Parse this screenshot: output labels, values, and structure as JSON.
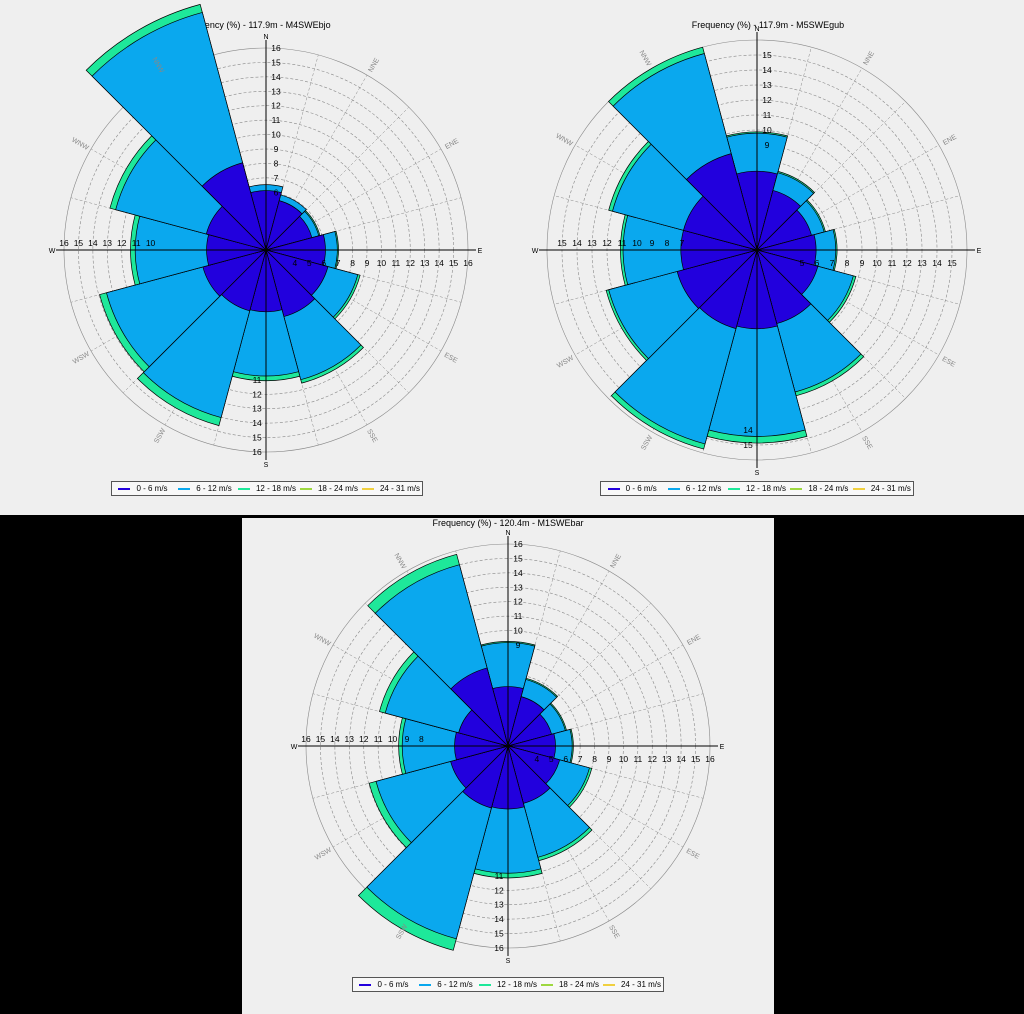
{
  "colors": {
    "bin0": "#2200dd",
    "bin1": "#0aa8ee",
    "bin2": "#1ee89a",
    "bin3": "#9ed840",
    "bin4": "#f0d040",
    "outline": "#000000",
    "grid": "#888888"
  },
  "legend": [
    "0 - 6 m/s",
    "6 - 12 m/s",
    "12 - 18 m/s",
    "18 - 24 m/s",
    "24 - 31 m/s"
  ],
  "chart_data": [
    {
      "type": "wind-rose",
      "title": "Frequency (%) - 117.9m - M4SWEbjo",
      "directions": [
        "N",
        "NNE",
        "ENE",
        "E",
        "ESE",
        "SSE",
        "S",
        "SSW",
        "WSW",
        "W",
        "WNW",
        "NNW"
      ],
      "compass_labels": [
        {
          "text": "N",
          "deg": 0
        },
        {
          "text": "NNE",
          "deg": 30
        },
        {
          "text": "ENE",
          "deg": 60
        },
        {
          "text": "E",
          "deg": 90
        },
        {
          "text": "ESE",
          "deg": 120
        },
        {
          "text": "SSE",
          "deg": 150
        },
        {
          "text": "S",
          "deg": 180
        },
        {
          "text": "SSW",
          "deg": 210
        },
        {
          "text": "WSW",
          "deg": 240
        },
        {
          "text": "W",
          "deg": 270
        },
        {
          "text": "WNW",
          "deg": 300
        },
        {
          "text": "NNW",
          "deg": 330
        }
      ],
      "r_inner": 3,
      "r_max": 17,
      "axis_labels": {
        "north": [
          6,
          7,
          8,
          9,
          10,
          11,
          12,
          13,
          14,
          15,
          16
        ],
        "east": [
          4,
          5,
          6,
          7,
          8,
          9,
          10,
          11,
          12,
          13,
          14,
          15,
          16
        ],
        "south": [
          11,
          12,
          13,
          14,
          15,
          16
        ],
        "west": [
          10,
          11,
          12,
          13,
          14,
          15,
          16
        ]
      },
      "series": [
        {
          "name": "0 - 6 m/s",
          "values": [
            5.0,
            4.3,
            4.0,
            5.0,
            5.4,
            5.8,
            5.2,
            5.3,
            5.5,
            5.0,
            5.2,
            7.6
          ]
        },
        {
          "name": "6 - 12 m/s",
          "values": [
            0.5,
            0.5,
            0.6,
            1.0,
            2.6,
            5.5,
            5.4,
            9.3,
            8.4,
            6.0,
            7.9,
            13.1
          ]
        },
        {
          "name": "12 - 18 m/s",
          "values": [
            0.0,
            0.0,
            0.1,
            0.1,
            0.2,
            0.3,
            0.4,
            0.7,
            0.6,
            0.4,
            0.5,
            0.7
          ]
        },
        {
          "name": "18 - 24 m/s",
          "values": [
            0,
            0,
            0,
            0,
            0,
            0,
            0,
            0,
            0,
            0,
            0,
            0
          ]
        },
        {
          "name": "24 - 31 m/s",
          "values": [
            0,
            0,
            0,
            0,
            0,
            0,
            0,
            0,
            0,
            0,
            0,
            0
          ]
        }
      ]
    },
    {
      "type": "wind-rose",
      "title": "Frequency (%) - 117.9m - M5SWEgub",
      "directions": [
        "N",
        "NNE",
        "ENE",
        "E",
        "ESE",
        "SSE",
        "S",
        "SSW",
        "WSW",
        "W",
        "WNW",
        "NNW"
      ],
      "compass_labels": [
        {
          "text": "N",
          "deg": 0
        },
        {
          "text": "NNE",
          "deg": 30
        },
        {
          "text": "ENE",
          "deg": 60
        },
        {
          "text": "E",
          "deg": 90
        },
        {
          "text": "ESE",
          "deg": 120
        },
        {
          "text": "SSE",
          "deg": 150
        },
        {
          "text": "S",
          "deg": 180
        },
        {
          "text": "SSW",
          "deg": 210
        },
        {
          "text": "WSW",
          "deg": 240
        },
        {
          "text": "W",
          "deg": 270
        },
        {
          "text": "WNW",
          "deg": 300
        },
        {
          "text": "NNW",
          "deg": 330
        }
      ],
      "r_inner": 3,
      "r_max": 16,
      "axis_labels": {
        "north": [
          9,
          10,
          11,
          12,
          13,
          14,
          15
        ],
        "east": [
          5,
          6,
          7,
          8,
          9,
          10,
          11,
          12,
          13,
          14,
          15
        ],
        "south": [
          14,
          15
        ],
        "west": [
          7,
          8,
          9,
          10,
          11,
          12,
          13,
          14,
          15
        ]
      },
      "series": [
        {
          "name": "0 - 6 m/s",
          "values": [
            6.0,
            4.7,
            4.3,
            4.5,
            4.8,
            5.8,
            6.0,
            6.2,
            6.3,
            5.8,
            5.8,
            7.6
          ]
        },
        {
          "name": "6 - 12 m/s",
          "values": [
            2.9,
            1.4,
            1.0,
            1.5,
            2.8,
            5.4,
            8.2,
            9.1,
            5.4,
            4.4,
            5.6,
            7.9
          ]
        },
        {
          "name": "12 - 18 m/s",
          "values": [
            0.1,
            0.1,
            0.1,
            0.1,
            0.2,
            0.3,
            0.5,
            0.4,
            0.2,
            0.2,
            0.3,
            0.5
          ]
        },
        {
          "name": "18 - 24 m/s",
          "values": [
            0,
            0,
            0,
            0,
            0,
            0,
            0,
            0,
            0,
            0,
            0,
            0
          ]
        },
        {
          "name": "24 - 31 m/s",
          "values": [
            0,
            0,
            0,
            0,
            0,
            0,
            0,
            0,
            0,
            0,
            0,
            0
          ]
        }
      ]
    },
    {
      "type": "wind-rose",
      "title": "Frequency (%) - 120.4m - M1SWEbar",
      "directions": [
        "N",
        "NNE",
        "ENE",
        "E",
        "ESE",
        "SSE",
        "S",
        "SSW",
        "WSW",
        "W",
        "WNW",
        "NNW"
      ],
      "compass_labels": [
        {
          "text": "N",
          "deg": 0
        },
        {
          "text": "NNE",
          "deg": 30
        },
        {
          "text": "ENE",
          "deg": 60
        },
        {
          "text": "E",
          "deg": 90
        },
        {
          "text": "ESE",
          "deg": 120
        },
        {
          "text": "SSE",
          "deg": 150
        },
        {
          "text": "S",
          "deg": 180
        },
        {
          "text": "SSW",
          "deg": 210
        },
        {
          "text": "WSW",
          "deg": 240
        },
        {
          "text": "W",
          "deg": 270
        },
        {
          "text": "WNW",
          "deg": 300
        },
        {
          "text": "NNW",
          "deg": 330
        }
      ],
      "r_inner": 3,
      "r_max": 17,
      "axis_labels": {
        "north": [
          9,
          10,
          11,
          12,
          13,
          14,
          15,
          16
        ],
        "east": [
          4,
          5,
          6,
          7,
          8,
          9,
          10,
          11,
          12,
          13,
          14,
          15,
          16
        ],
        "south": [
          11,
          12,
          13,
          14,
          15,
          16
        ],
        "west": [
          8,
          9,
          10,
          11,
          12,
          13,
          14,
          15,
          16
        ]
      },
      "series": [
        {
          "name": "0 - 6 m/s",
          "values": [
            5.0,
            4.3,
            3.8,
            4.0,
            4.5,
            5.0,
            5.3,
            5.4,
            5.0,
            4.5,
            4.3,
            6.8
          ]
        },
        {
          "name": "6 - 12 m/s",
          "values": [
            3.7,
            1.5,
            1.2,
            1.4,
            2.6,
            4.7,
            5.4,
            11.4,
            6.5,
            4.4,
            6.4,
            9.0
          ]
        },
        {
          "name": "12 - 18 m/s",
          "values": [
            0.1,
            0.1,
            0.1,
            0.1,
            0.2,
            0.3,
            0.4,
            1.0,
            0.6,
            0.3,
            0.5,
            0.9
          ]
        },
        {
          "name": "18 - 24 m/s",
          "values": [
            0,
            0,
            0,
            0,
            0,
            0,
            0,
            0,
            0,
            0,
            0,
            0
          ]
        },
        {
          "name": "24 - 31 m/s",
          "values": [
            0,
            0,
            0,
            0,
            0,
            0,
            0,
            0,
            0,
            0,
            0,
            0
          ]
        }
      ]
    }
  ]
}
